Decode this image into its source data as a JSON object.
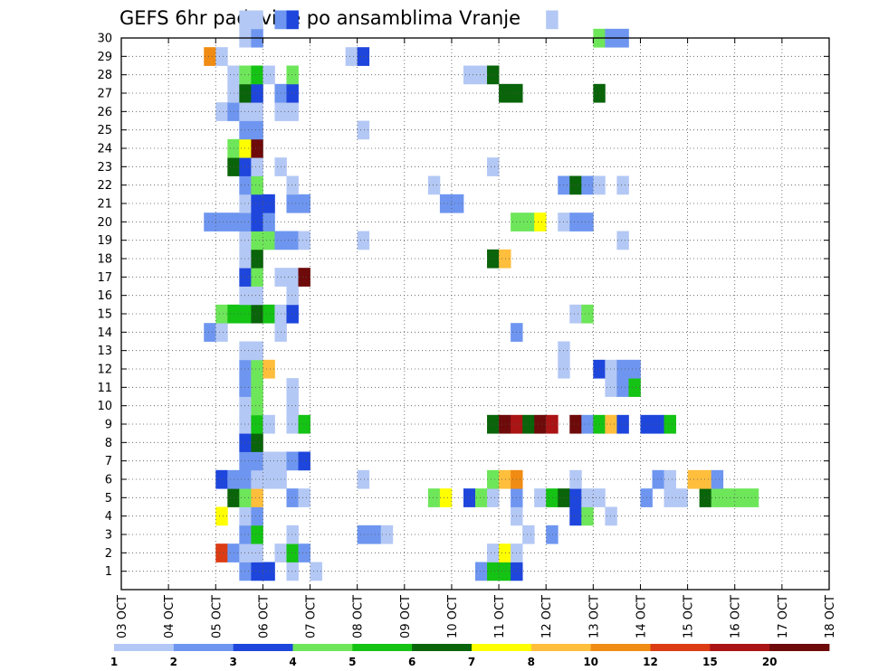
{
  "chart_data": {
    "type": "heatmap",
    "title": "GEFS 6hr padavine po ansamblima Vranje",
    "xlabel": "",
    "ylabel": "",
    "x_ticks": [
      "03 OCT",
      "04 OCT",
      "05 OCT",
      "06 OCT",
      "07 OCT",
      "08 OCT",
      "09 OCT",
      "10 OCT",
      "11 OCT",
      "12 OCT",
      "13 OCT",
      "14 OCT",
      "15 OCT",
      "16 OCT",
      "17 OCT",
      "18 OCT"
    ],
    "y_ticks": [
      "1",
      "2",
      "3",
      "4",
      "5",
      "6",
      "7",
      "8",
      "9",
      "10",
      "11",
      "12",
      "13",
      "14",
      "15",
      "16",
      "17",
      "18",
      "19",
      "20",
      "21",
      "22",
      "23",
      "24",
      "25",
      "26",
      "27",
      "28",
      "29",
      "30"
    ],
    "x_range_days": [
      3,
      18
    ],
    "y_range": [
      0,
      30
    ],
    "steps_per_day": 4,
    "grid": true,
    "colorbar": {
      "labels": [
        "1",
        "2",
        "3",
        "4",
        "5",
        "6",
        "7",
        "8",
        "10",
        "12",
        "15",
        "20"
      ],
      "colors": [
        "#b4c8f5",
        "#6e96f0",
        "#1e46dc",
        "#6ee65a",
        "#14c314",
        "#0a640a",
        "#ffff00",
        "#ffbe3c",
        "#f08c14",
        "#dc3c14",
        "#aa1414",
        "#6e0a0a"
      ]
    },
    "cells": [
      [
        1,
        10,
        2
      ],
      [
        1,
        11,
        3
      ],
      [
        1,
        12,
        3
      ],
      [
        1,
        14,
        1
      ],
      [
        1,
        16,
        1
      ],
      [
        1,
        30,
        2
      ],
      [
        1,
        31,
        5
      ],
      [
        1,
        32,
        5
      ],
      [
        1,
        33,
        3
      ],
      [
        2,
        8,
        10
      ],
      [
        2,
        9,
        2
      ],
      [
        2,
        10,
        1
      ],
      [
        2,
        11,
        1
      ],
      [
        2,
        13,
        1
      ],
      [
        2,
        14,
        5
      ],
      [
        2,
        15,
        2
      ],
      [
        2,
        31,
        1
      ],
      [
        2,
        32,
        7
      ],
      [
        2,
        33,
        1
      ],
      [
        3,
        10,
        2
      ],
      [
        3,
        11,
        5
      ],
      [
        3,
        14,
        1
      ],
      [
        3,
        20,
        2
      ],
      [
        3,
        21,
        2
      ],
      [
        3,
        22,
        1
      ],
      [
        3,
        34,
        1
      ],
      [
        3,
        36,
        2
      ],
      [
        4,
        8,
        7
      ],
      [
        4,
        10,
        1
      ],
      [
        4,
        11,
        2
      ],
      [
        4,
        33,
        1
      ],
      [
        4,
        38,
        3
      ],
      [
        4,
        39,
        4
      ],
      [
        4,
        41,
        1
      ],
      [
        5,
        9,
        6
      ],
      [
        5,
        10,
        4
      ],
      [
        5,
        11,
        8
      ],
      [
        5,
        14,
        2
      ],
      [
        5,
        15,
        1
      ],
      [
        5,
        26,
        4
      ],
      [
        5,
        27,
        7
      ],
      [
        5,
        29,
        3
      ],
      [
        5,
        30,
        4
      ],
      [
        5,
        31,
        1
      ],
      [
        5,
        33,
        2
      ],
      [
        5,
        35,
        1
      ],
      [
        5,
        36,
        5
      ],
      [
        5,
        37,
        6
      ],
      [
        5,
        38,
        3
      ],
      [
        5,
        39,
        1
      ],
      [
        5,
        40,
        1
      ],
      [
        5,
        44,
        2
      ],
      [
        5,
        46,
        1
      ],
      [
        5,
        47,
        1
      ],
      [
        5,
        49,
        6
      ],
      [
        5,
        50,
        4
      ],
      [
        5,
        51,
        4
      ],
      [
        5,
        52,
        4
      ],
      [
        5,
        53,
        4
      ],
      [
        6,
        8,
        3
      ],
      [
        6,
        9,
        2
      ],
      [
        6,
        10,
        2
      ],
      [
        6,
        11,
        1
      ],
      [
        6,
        12,
        1
      ],
      [
        6,
        13,
        1
      ],
      [
        6,
        20,
        1
      ],
      [
        6,
        31,
        4
      ],
      [
        6,
        32,
        8
      ],
      [
        6,
        33,
        9
      ],
      [
        6,
        38,
        1
      ],
      [
        6,
        45,
        2
      ],
      [
        6,
        46,
        1
      ],
      [
        6,
        48,
        8
      ],
      [
        6,
        49,
        8
      ],
      [
        6,
        50,
        2
      ],
      [
        7,
        10,
        2
      ],
      [
        7,
        11,
        2
      ],
      [
        7,
        12,
        1
      ],
      [
        7,
        13,
        1
      ],
      [
        7,
        14,
        2
      ],
      [
        7,
        15,
        3
      ],
      [
        8,
        10,
        3
      ],
      [
        8,
        11,
        6
      ],
      [
        9,
        10,
        1
      ],
      [
        9,
        11,
        5
      ],
      [
        9,
        12,
        1
      ],
      [
        9,
        14,
        1
      ],
      [
        9,
        15,
        5
      ],
      [
        9,
        31,
        6
      ],
      [
        9,
        32,
        12
      ],
      [
        9,
        33,
        11
      ],
      [
        9,
        34,
        6
      ],
      [
        9,
        35,
        12
      ],
      [
        9,
        36,
        11
      ],
      [
        9,
        38,
        12
      ],
      [
        9,
        39,
        2
      ],
      [
        9,
        40,
        5
      ],
      [
        9,
        41,
        8
      ],
      [
        9,
        42,
        3
      ],
      [
        9,
        44,
        3
      ],
      [
        9,
        45,
        3
      ],
      [
        9,
        46,
        5
      ],
      [
        10,
        10,
        1
      ],
      [
        10,
        11,
        4
      ],
      [
        10,
        14,
        1
      ],
      [
        11,
        10,
        2
      ],
      [
        11,
        11,
        4
      ],
      [
        11,
        14,
        1
      ],
      [
        11,
        41,
        1
      ],
      [
        11,
        42,
        2
      ],
      [
        11,
        43,
        5
      ],
      [
        12,
        10,
        2
      ],
      [
        12,
        11,
        4
      ],
      [
        12,
        12,
        8
      ],
      [
        12,
        37,
        1
      ],
      [
        12,
        40,
        3
      ],
      [
        12,
        41,
        1
      ],
      [
        12,
        42,
        2
      ],
      [
        12,
        43,
        2
      ],
      [
        13,
        10,
        1
      ],
      [
        13,
        11,
        1
      ],
      [
        13,
        37,
        1
      ],
      [
        14,
        7,
        2
      ],
      [
        14,
        8,
        1
      ],
      [
        14,
        13,
        1
      ],
      [
        14,
        33,
        2
      ],
      [
        15,
        8,
        4
      ],
      [
        15,
        9,
        5
      ],
      [
        15,
        10,
        5
      ],
      [
        15,
        11,
        6
      ],
      [
        15,
        12,
        5
      ],
      [
        15,
        13,
        1
      ],
      [
        15,
        14,
        3
      ],
      [
        15,
        38,
        1
      ],
      [
        15,
        39,
        4
      ],
      [
        16,
        10,
        1
      ],
      [
        16,
        11,
        1
      ],
      [
        16,
        14,
        1
      ],
      [
        17,
        10,
        3
      ],
      [
        17,
        11,
        4
      ],
      [
        17,
        13,
        1
      ],
      [
        17,
        14,
        1
      ],
      [
        17,
        15,
        12
      ],
      [
        18,
        10,
        1
      ],
      [
        18,
        11,
        6
      ],
      [
        18,
        31,
        6
      ],
      [
        18,
        32,
        8
      ],
      [
        19,
        10,
        1
      ],
      [
        19,
        11,
        4
      ],
      [
        19,
        12,
        4
      ],
      [
        19,
        13,
        2
      ],
      [
        19,
        14,
        2
      ],
      [
        19,
        15,
        1
      ],
      [
        19,
        20,
        1
      ],
      [
        19,
        42,
        1
      ],
      [
        20,
        7,
        2
      ],
      [
        20,
        8,
        2
      ],
      [
        20,
        9,
        2
      ],
      [
        20,
        10,
        2
      ],
      [
        20,
        11,
        3
      ],
      [
        20,
        12,
        2
      ],
      [
        20,
        33,
        4
      ],
      [
        20,
        34,
        4
      ],
      [
        20,
        35,
        7
      ],
      [
        20,
        37,
        1
      ],
      [
        20,
        38,
        2
      ],
      [
        20,
        39,
        2
      ],
      [
        21,
        10,
        1
      ],
      [
        21,
        11,
        3
      ],
      [
        21,
        12,
        3
      ],
      [
        21,
        14,
        2
      ],
      [
        21,
        15,
        2
      ],
      [
        21,
        27,
        2
      ],
      [
        21,
        28,
        2
      ],
      [
        22,
        10,
        2
      ],
      [
        22,
        11,
        4
      ],
      [
        22,
        14,
        1
      ],
      [
        22,
        26,
        1
      ],
      [
        22,
        37,
        2
      ],
      [
        22,
        38,
        6
      ],
      [
        22,
        39,
        2
      ],
      [
        22,
        40,
        1
      ],
      [
        22,
        42,
        1
      ],
      [
        23,
        9,
        6
      ],
      [
        23,
        10,
        3
      ],
      [
        23,
        11,
        1
      ],
      [
        23,
        13,
        1
      ],
      [
        23,
        31,
        1
      ],
      [
        24,
        9,
        4
      ],
      [
        24,
        10,
        7
      ],
      [
        24,
        11,
        12
      ],
      [
        25,
        10,
        2
      ],
      [
        25,
        11,
        2
      ],
      [
        25,
        20,
        1
      ],
      [
        26,
        8,
        1
      ],
      [
        26,
        9,
        2
      ],
      [
        26,
        10,
        1
      ],
      [
        26,
        11,
        1
      ],
      [
        26,
        13,
        1
      ],
      [
        26,
        14,
        1
      ],
      [
        27,
        9,
        1
      ],
      [
        27,
        10,
        6
      ],
      [
        27,
        11,
        3
      ],
      [
        27,
        13,
        2
      ],
      [
        27,
        14,
        3
      ],
      [
        27,
        32,
        6
      ],
      [
        27,
        33,
        6
      ],
      [
        27,
        40,
        6
      ],
      [
        28,
        9,
        1
      ],
      [
        28,
        10,
        4
      ],
      [
        28,
        11,
        5
      ],
      [
        28,
        12,
        1
      ],
      [
        28,
        14,
        4
      ],
      [
        28,
        29,
        1
      ],
      [
        28,
        30,
        1
      ],
      [
        28,
        31,
        6
      ],
      [
        29,
        7,
        9
      ],
      [
        29,
        8,
        1
      ],
      [
        29,
        19,
        1
      ],
      [
        29,
        20,
        3
      ],
      [
        30,
        10,
        1
      ],
      [
        30,
        11,
        2
      ],
      [
        30,
        40,
        4
      ],
      [
        30,
        41,
        2
      ],
      [
        30,
        42,
        2
      ],
      [
        31,
        10,
        1
      ],
      [
        31,
        11,
        1
      ],
      [
        31,
        13,
        2
      ],
      [
        31,
        14,
        3
      ],
      [
        31,
        36,
        1
      ]
    ]
  }
}
